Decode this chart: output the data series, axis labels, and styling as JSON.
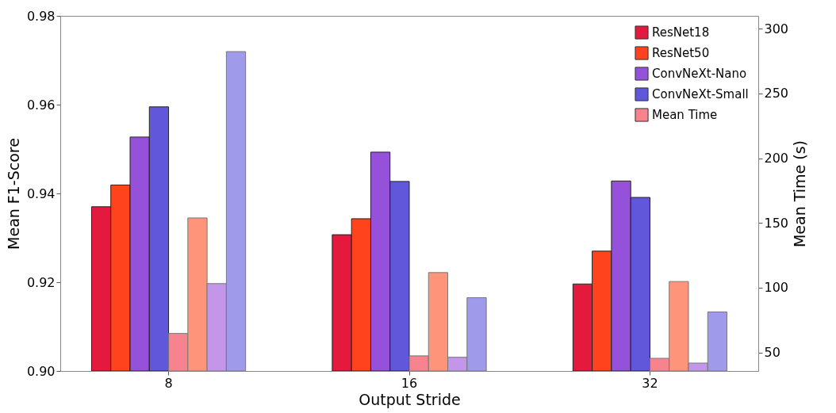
{
  "chart_data": {
    "type": "bar",
    "xlabel": "Output Stride",
    "ylabel": "Mean F1-Score",
    "y2label": "Mean Time (s)",
    "categories": [
      "8",
      "16",
      "32"
    ],
    "series": [
      {
        "name": "ResNet18",
        "color": "#e31a3e",
        "values": [
          0.937,
          0.9307,
          0.9196
        ]
      },
      {
        "name": "ResNet50",
        "color": "#ff431c",
        "values": [
          0.9419,
          0.9343,
          0.927
        ]
      },
      {
        "name": "ConvNeXt-Nano",
        "color": "#9551d9",
        "values": [
          0.9527,
          0.9493,
          0.9428
        ]
      },
      {
        "name": "ConvNeXt-Small",
        "color": "#6157db",
        "values": [
          0.9595,
          0.9427,
          0.9391
        ]
      },
      {
        "name": "Mean Time",
        "axis": "y2",
        "color": "#f7838e",
        "values": [
          64.7,
          47.4,
          45.5
        ]
      },
      {
        "axis": "y2",
        "color": "#fe957a",
        "values": [
          153.9,
          111.7,
          104.8
        ]
      },
      {
        "axis": "y2",
        "color": "#c396ea",
        "values": [
          103.2,
          46.3,
          41.8
        ]
      },
      {
        "axis": "y2",
        "color": "#a09aeb",
        "values": [
          282.4,
          92.3,
          81.3
        ]
      }
    ],
    "ylim": [
      0.9,
      0.98
    ],
    "yticks": [
      {
        "value": 0.9,
        "label": "0.90"
      },
      {
        "value": 0.92,
        "label": "0.92"
      },
      {
        "value": 0.94,
        "label": "0.94"
      },
      {
        "value": 0.96,
        "label": "0.96"
      },
      {
        "value": 0.98,
        "label": "0.98"
      }
    ],
    "y2lim": [
      35.7,
      310
    ],
    "y2ticks": [
      50,
      100,
      150,
      200,
      250,
      300
    ],
    "grid": false,
    "legend": "top right"
  }
}
